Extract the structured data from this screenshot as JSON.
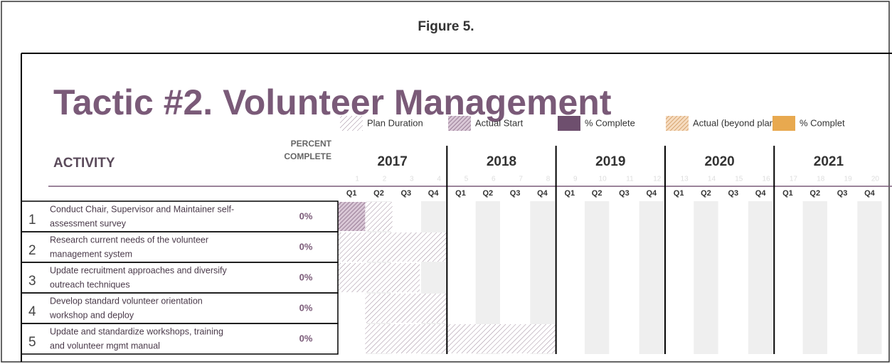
{
  "figure": "Figure 5.",
  "title": "Tactic #2. Volunteer Management",
  "legend": [
    "Plan Duration",
    "Actual Start",
    "% Complete",
    "Actual (beyond plan)",
    "% Complet"
  ],
  "header": {
    "activity": "ACTIVITY",
    "percent": [
      "PERCENT",
      "COMPLETE"
    ]
  },
  "years": [
    "2017",
    "2018",
    "2019",
    "2020",
    "2021"
  ],
  "periods": [
    1,
    2,
    3,
    4,
    5,
    6,
    7,
    8,
    9,
    10,
    11,
    12,
    13,
    14,
    15,
    16,
    17,
    18,
    19,
    20
  ],
  "quarters": [
    "Q1",
    "Q2",
    "Q3",
    "Q4",
    "Q1",
    "Q2",
    "Q3",
    "Q4",
    "Q1",
    "Q2",
    "Q3",
    "Q4",
    "Q1",
    "Q2",
    "Q3",
    "Q4",
    "Q1",
    "Q2",
    "Q3",
    "Q4"
  ],
  "tasks": [
    {
      "number": "1",
      "activity": [
        "Conduct Chair, Supervisor and Maintainer self-",
        "assessment survey"
      ],
      "percent": "0%",
      "plan_start": 1,
      "plan_duration": 2,
      "actual_start": 1,
      "actual_duration": 1
    },
    {
      "number": "2",
      "activity": [
        "Research current needs of the volunteer",
        "management system"
      ],
      "percent": "0%",
      "plan_start": 1,
      "plan_duration": 4
    },
    {
      "number": "3",
      "activity": [
        "Update recruitment approaches and diversify",
        "outreach techniques"
      ],
      "percent": "0%",
      "plan_start": 1,
      "plan_duration": 3
    },
    {
      "number": "4",
      "activity": [
        "Develop standard volunteer orientation",
        "workshop and deploy"
      ],
      "percent": "0%",
      "plan_start": 2,
      "plan_duration": 3
    },
    {
      "number": "5",
      "activity": [
        "Update and standardize workshops, training",
        "and volunteer mgmt manual"
      ],
      "percent": "0%",
      "plan_start": 2,
      "plan_duration": 7
    }
  ]
}
